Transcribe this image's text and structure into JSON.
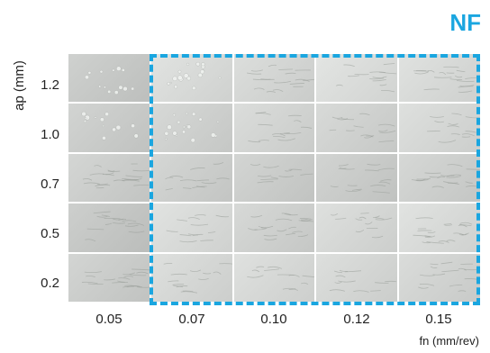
{
  "brand": {
    "label": "NF",
    "color": "#1aa6e0"
  },
  "y_axis": {
    "title": "ap (mm)",
    "ticks": [
      "1.2",
      "1.0",
      "0.7",
      "0.5",
      "0.2"
    ]
  },
  "x_axis": {
    "title": "fn (mm/rev)",
    "ticks": [
      "0.05",
      "0.07",
      "0.10",
      "0.12",
      "0.15"
    ]
  },
  "highlight": {
    "color": "#1aa6e0",
    "columns": [
      "0.07",
      "0.10",
      "0.12",
      "0.15"
    ]
  }
}
